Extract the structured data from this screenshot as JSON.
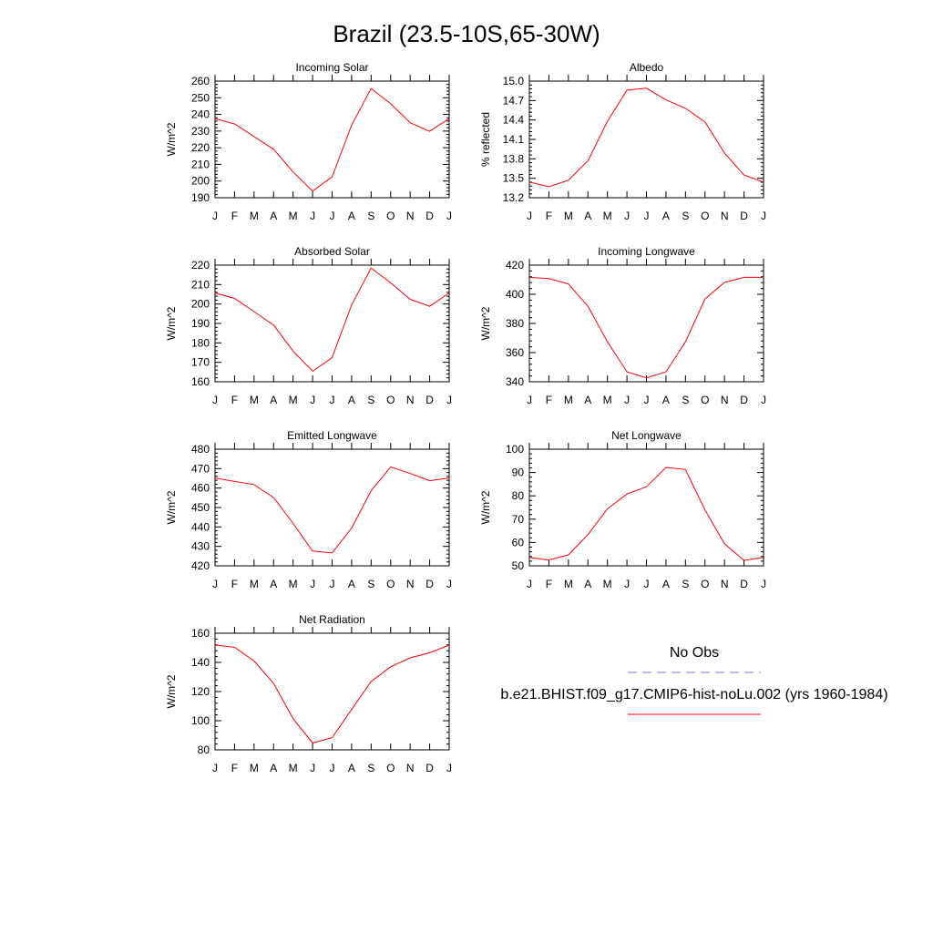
{
  "title": "Brazil (23.5-10S,65-30W)",
  "months": [
    "J",
    "F",
    "M",
    "A",
    "M",
    "J",
    "J",
    "A",
    "S",
    "O",
    "N",
    "D",
    "J"
  ],
  "colors": {
    "model": "#ff0000",
    "obs": "#7f7fff"
  },
  "legend": {
    "obs_label": "No Obs",
    "model_label": "b.e21.BHIST.f09_g17.CMIP6-hist-noLu.002 (yrs 1960-1984)"
  },
  "chart_data": [
    {
      "type": "line",
      "title": "Incoming Solar",
      "ylabel": "W/m^2",
      "ylim": [
        190,
        260
      ],
      "yticks": [
        190,
        200,
        210,
        220,
        230,
        240,
        250,
        260
      ],
      "ytick_labels": [
        "190",
        "200",
        "210",
        "220",
        "230",
        "240",
        "250",
        "260"
      ],
      "values": [
        237.5,
        234.3,
        226.7,
        219.1,
        205.4,
        194.0,
        202.6,
        233.6,
        255.5,
        246.4,
        235.0,
        229.8,
        237.5
      ]
    },
    {
      "type": "line",
      "title": "Albedo",
      "ylabel": "% reflected",
      "ylim": [
        13.2,
        15.0
      ],
      "yticks": [
        13.2,
        13.5,
        13.8,
        14.1,
        14.4,
        14.7,
        15.0
      ],
      "ytick_labels": [
        "13.2",
        "13.5",
        "13.8",
        "14.1",
        "14.4",
        "14.7",
        "15.0"
      ],
      "values": [
        13.44,
        13.37,
        13.47,
        13.77,
        14.38,
        14.86,
        14.89,
        14.71,
        14.58,
        14.37,
        13.89,
        13.55,
        13.44
      ]
    },
    {
      "type": "line",
      "title": "Absorbed Solar",
      "ylabel": "W/m^2",
      "ylim": [
        160,
        220
      ],
      "yticks": [
        160,
        170,
        180,
        190,
        200,
        210,
        220
      ],
      "ytick_labels": [
        "160",
        "170",
        "180",
        "190",
        "200",
        "210",
        "220"
      ],
      "values": [
        205.7,
        202.9,
        196.1,
        189.1,
        175.8,
        165.4,
        172.4,
        199.5,
        218.5,
        210.9,
        202.4,
        198.8,
        205.7
      ]
    },
    {
      "type": "line",
      "title": "Incoming Longwave",
      "ylabel": "W/m^2",
      "ylim": [
        340,
        420
      ],
      "yticks": [
        340,
        360,
        380,
        400,
        420
      ],
      "ytick_labels": [
        "340",
        "360",
        "380",
        "400",
        "420"
      ],
      "values": [
        411.6,
        410.8,
        407.1,
        391.8,
        367.4,
        346.8,
        342.7,
        346.8,
        367.4,
        396.8,
        408.1,
        411.6,
        411.6
      ]
    },
    {
      "type": "line",
      "title": "Emitted Longwave",
      "ylabel": "W/m^2",
      "ylim": [
        420,
        480
      ],
      "yticks": [
        420,
        430,
        440,
        450,
        460,
        470,
        480
      ],
      "ytick_labels": [
        "420",
        "430",
        "440",
        "450",
        "460",
        "470",
        "480"
      ],
      "values": [
        465.2,
        463.4,
        461.8,
        455.1,
        441.8,
        427.6,
        426.6,
        439.4,
        458.6,
        470.9,
        467.5,
        463.8,
        465.2
      ]
    },
    {
      "type": "line",
      "title": "Net Longwave",
      "ylabel": "W/m^2",
      "ylim": [
        50,
        100
      ],
      "yticks": [
        50,
        60,
        70,
        80,
        90,
        100
      ],
      "ytick_labels": [
        "50",
        "60",
        "70",
        "80",
        "90",
        "100"
      ],
      "values": [
        53.6,
        52.5,
        54.7,
        63.4,
        74.4,
        80.8,
        83.9,
        92.2,
        91.3,
        73.9,
        59.4,
        52.3,
        53.6
      ]
    },
    {
      "type": "line",
      "title": "Net Radiation",
      "ylabel": "W/m^2",
      "ylim": [
        80,
        160
      ],
      "yticks": [
        80,
        100,
        120,
        140,
        160
      ],
      "ytick_labels": [
        "80",
        "100",
        "120",
        "140",
        "160"
      ],
      "values": [
        151.9,
        150.4,
        141.0,
        125.6,
        101.4,
        84.7,
        88.4,
        107.7,
        126.9,
        137.0,
        143.1,
        146.6,
        151.9
      ]
    }
  ]
}
